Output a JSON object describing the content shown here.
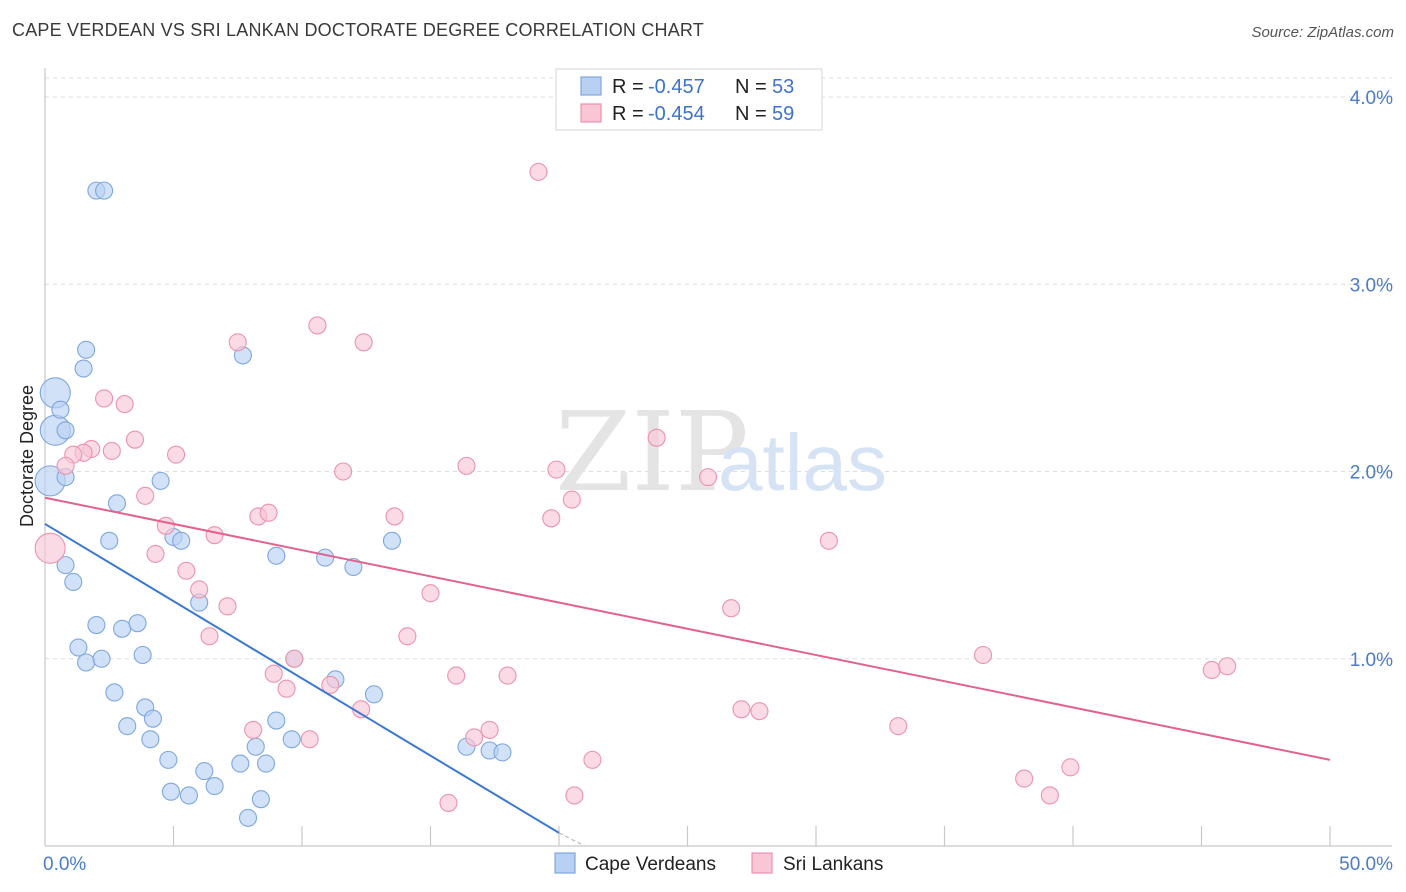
{
  "header": {
    "title": "CAPE VERDEAN VS SRI LANKAN DOCTORATE DEGREE CORRELATION CHART",
    "source": "Source: ZipAtlas.com"
  },
  "watermark": {
    "zip": "ZIP",
    "atlas": "atlas"
  },
  "legend": {
    "rows": [
      {
        "r_label": "R = ",
        "r_value": "-0.457",
        "n_label": "N = ",
        "n_value": "53",
        "color": "#a9c6ee"
      },
      {
        "r_label": "R = ",
        "r_value": "-0.454",
        "n_label": "N = ",
        "n_value": "59",
        "color": "#f5b6c9"
      }
    ]
  },
  "colors": {
    "blue_fill": "#b8d1f2",
    "blue_stroke": "#7ea7de",
    "blue_line": "#3b78d0",
    "pink_fill": "#f8c6d5",
    "pink_stroke": "#eb93ad",
    "pink_line": "#e2628f",
    "tick_text": "#4a7cc7"
  },
  "chart_data": {
    "type": "scatter",
    "title": "CAPE VERDEAN VS SRI LANKAN DOCTORATE DEGREE CORRELATION CHART",
    "xlabel": "",
    "ylabel": "Doctorate Degree",
    "xlim": [
      0,
      50
    ],
    "ylim": [
      0,
      4.2
    ],
    "x_tick_labels": [
      {
        "value": 0,
        "label": "0.0%"
      },
      {
        "value": 50,
        "label": "50.0%"
      }
    ],
    "y_tick_labels": [
      {
        "value": 1,
        "label": "1.0%"
      },
      {
        "value": 2,
        "label": "2.0%"
      },
      {
        "value": 3,
        "label": "3.0%"
      },
      {
        "value": 4,
        "label": "4.0%"
      }
    ],
    "x_minor_ticks": [
      5,
      10,
      15,
      20,
      25,
      30,
      35,
      40,
      45,
      50
    ],
    "series": [
      {
        "name": "Cape Verdeans",
        "color": "blue",
        "trend": {
          "x0": 0,
          "y0": 1.72,
          "x1": 20,
          "y1": 0.07
        },
        "points": [
          [
            2,
            3.5
          ],
          [
            2.3,
            3.5
          ],
          [
            0.2,
            1.95
          ],
          [
            0.4,
            2.22
          ],
          [
            0.4,
            2.42
          ],
          [
            0.6,
            2.33
          ],
          [
            0.8,
            2.22
          ],
          [
            1.6,
            2.65
          ],
          [
            1.5,
            2.55
          ],
          [
            0.8,
            1.97
          ],
          [
            7.7,
            2.62
          ],
          [
            2.8,
            1.83
          ],
          [
            2.5,
            1.63
          ],
          [
            4.5,
            1.95
          ],
          [
            5.0,
            1.65
          ],
          [
            5.3,
            1.63
          ],
          [
            0.8,
            1.5
          ],
          [
            1.1,
            1.41
          ],
          [
            6.0,
            1.3
          ],
          [
            9.0,
            1.55
          ],
          [
            10.9,
            1.54
          ],
          [
            12.0,
            1.49
          ],
          [
            13.5,
            1.63
          ],
          [
            2.0,
            1.18
          ],
          [
            3.0,
            1.16
          ],
          [
            3.6,
            1.19
          ],
          [
            1.3,
            1.06
          ],
          [
            1.6,
            0.98
          ],
          [
            2.2,
            1.0
          ],
          [
            3.8,
            1.02
          ],
          [
            9.7,
            1.0
          ],
          [
            11.3,
            0.89
          ],
          [
            12.8,
            0.81
          ],
          [
            2.7,
            0.82
          ],
          [
            3.9,
            0.74
          ],
          [
            4.2,
            0.68
          ],
          [
            3.2,
            0.64
          ],
          [
            4.1,
            0.57
          ],
          [
            4.8,
            0.46
          ],
          [
            6.2,
            0.4
          ],
          [
            7.6,
            0.44
          ],
          [
            8.2,
            0.53
          ],
          [
            8.6,
            0.44
          ],
          [
            9.0,
            0.67
          ],
          [
            9.6,
            0.57
          ],
          [
            16.4,
            0.53
          ],
          [
            17.3,
            0.51
          ],
          [
            17.8,
            0.5
          ],
          [
            4.9,
            0.29
          ],
          [
            5.6,
            0.27
          ],
          [
            6.6,
            0.32
          ],
          [
            8.4,
            0.25
          ],
          [
            7.9,
            0.15
          ]
        ]
      },
      {
        "name": "Sri Lankans",
        "color": "pink",
        "trend": {
          "x0": 0,
          "y0": 1.86,
          "x1": 50,
          "y1": 0.46
        },
        "points": [
          [
            19.2,
            3.6
          ],
          [
            10.6,
            2.78
          ],
          [
            12.4,
            2.69
          ],
          [
            7.5,
            2.69
          ],
          [
            2.3,
            2.39
          ],
          [
            3.1,
            2.36
          ],
          [
            3.5,
            2.17
          ],
          [
            1.8,
            2.12
          ],
          [
            1.5,
            2.1
          ],
          [
            1.1,
            2.09
          ],
          [
            2.6,
            2.11
          ],
          [
            5.1,
            2.09
          ],
          [
            0.8,
            2.03
          ],
          [
            11.6,
            2.0
          ],
          [
            16.4,
            2.03
          ],
          [
            19.9,
            2.01
          ],
          [
            23.8,
            2.18
          ],
          [
            25.8,
            1.97
          ],
          [
            3.9,
            1.87
          ],
          [
            20.5,
            1.85
          ],
          [
            8.3,
            1.76
          ],
          [
            8.7,
            1.78
          ],
          [
            13.6,
            1.76
          ],
          [
            19.7,
            1.75
          ],
          [
            4.7,
            1.71
          ],
          [
            6.6,
            1.66
          ],
          [
            0.2,
            1.59
          ],
          [
            4.3,
            1.56
          ],
          [
            5.5,
            1.47
          ],
          [
            6.0,
            1.37
          ],
          [
            7.1,
            1.28
          ],
          [
            15.0,
            1.35
          ],
          [
            26.7,
            1.27
          ],
          [
            30.5,
            1.63
          ],
          [
            6.4,
            1.12
          ],
          [
            14.1,
            1.12
          ],
          [
            9.7,
            1.0
          ],
          [
            8.9,
            0.92
          ],
          [
            9.4,
            0.84
          ],
          [
            11.1,
            0.86
          ],
          [
            16.0,
            0.91
          ],
          [
            18.0,
            0.91
          ],
          [
            36.5,
            1.02
          ],
          [
            45.4,
            0.94
          ],
          [
            46.0,
            0.96
          ],
          [
            12.3,
            0.73
          ],
          [
            8.1,
            0.62
          ],
          [
            10.3,
            0.57
          ],
          [
            16.7,
            0.58
          ],
          [
            17.3,
            0.62
          ],
          [
            27.1,
            0.73
          ],
          [
            27.8,
            0.72
          ],
          [
            33.2,
            0.64
          ],
          [
            21.3,
            0.46
          ],
          [
            20.6,
            0.27
          ],
          [
            15.7,
            0.23
          ],
          [
            38.1,
            0.36
          ],
          [
            39.9,
            0.42
          ],
          [
            39.1,
            0.27
          ]
        ]
      }
    ]
  },
  "bottom_legend": {
    "items": [
      {
        "label": "Cape Verdeans",
        "color": "blue"
      },
      {
        "label": "Sri Lankans",
        "color": "pink"
      }
    ]
  }
}
